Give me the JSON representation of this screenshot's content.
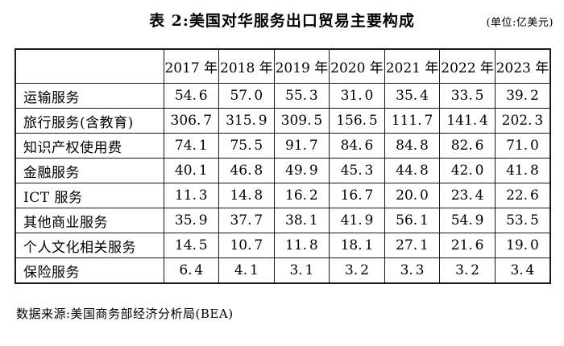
{
  "title": "表 2:美国对华服务出口贸易主要构成",
  "unit_label": "(单位:亿美元)",
  "source": "数据来源:美国商务部经济分析局(BEA)",
  "chart_data": {
    "type": "table",
    "title": "表 2:美国对华服务出口贸易主要构成",
    "unit": "亿美元",
    "columns": [
      "",
      "2017 年",
      "2018 年",
      "2019 年",
      "2020 年",
      "2021 年",
      "2022 年",
      "2023 年"
    ],
    "rows": [
      {
        "label": "运输服务",
        "values": [
          "54.6",
          "57.0",
          "55.3",
          "31.0",
          "35.4",
          "33.5",
          "39.2"
        ]
      },
      {
        "label": "旅行服务(含教育)",
        "values": [
          "306.7",
          "315.9",
          "309.5",
          "156.5",
          "111.7",
          "141.4",
          "202.3"
        ]
      },
      {
        "label": "知识产权使用费",
        "values": [
          "74.1",
          "75.5",
          "91.7",
          "84.6",
          "84.8",
          "82.6",
          "71.0"
        ]
      },
      {
        "label": "金融服务",
        "values": [
          "40.1",
          "46.8",
          "49.9",
          "45.3",
          "44.8",
          "42.0",
          "41.8"
        ]
      },
      {
        "label": "ICT 服务",
        "values": [
          "11.3",
          "14.8",
          "16.2",
          "16.7",
          "20.0",
          "23.4",
          "22.6"
        ]
      },
      {
        "label": "其他商业服务",
        "values": [
          "35.9",
          "37.7",
          "38.1",
          "41.9",
          "56.1",
          "54.9",
          "53.5"
        ]
      },
      {
        "label": "个人文化相关服务",
        "values": [
          "14.5",
          "10.7",
          "11.8",
          "18.1",
          "27.1",
          "21.6",
          "19.0"
        ]
      },
      {
        "label": "保险服务",
        "values": [
          "6.4",
          "4.1",
          "3.1",
          "3.2",
          "3.3",
          "3.2",
          "3.4"
        ]
      }
    ],
    "source": "数据来源:美国商务部经济分析局(BEA)"
  }
}
